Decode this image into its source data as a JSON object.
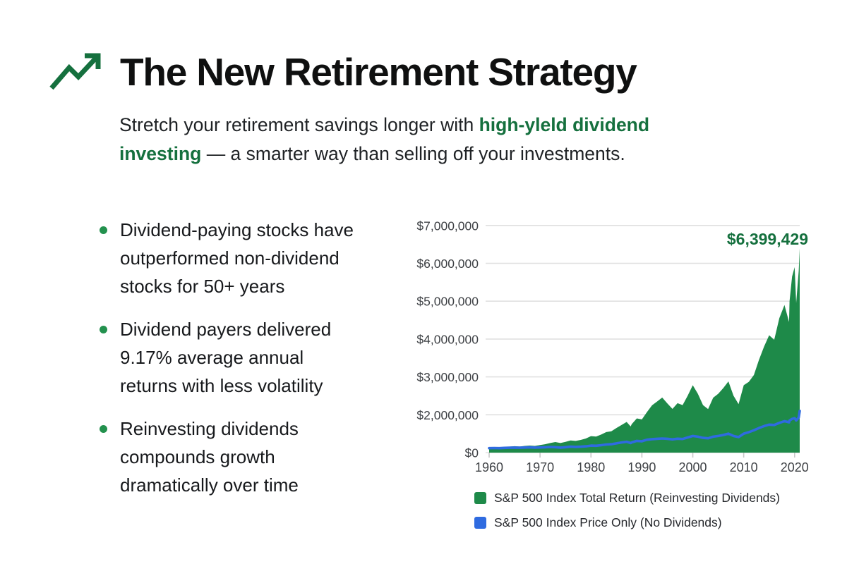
{
  "header": {
    "icon": "trend-up-arrow",
    "title": "The New Retirement Strategy",
    "subtitle": {
      "prefix": "Stretch your retirement savings longer with ",
      "highlight": "high-yleld dividend investing",
      "suffix": " — a smarter way than selling off your investments."
    }
  },
  "bullets": [
    "Dividend-paying stocks have outperformed non-dividend stocks for 50+ years",
    "Dividend payers delivered 9.17% average annual returns with less volatility",
    "Reinvesting dividends compounds growth dramatically over time"
  ],
  "colors": {
    "accent_text_green": "#15703E",
    "chart_area_green": "#1E8A49",
    "line_blue": "#2F6BE0",
    "bullet_dot_green": "#23914E",
    "text_dark": "#17191C",
    "grid_gray": "#E0E0E0",
    "axis_label_gray": "#3F4246"
  },
  "chart_data": {
    "type": "area",
    "title": "",
    "xlabel": "",
    "ylabel": "",
    "grid": true,
    "legend_position": "bottom",
    "x_range": [
      1960,
      2021
    ],
    "x_tick_labels": [
      "1960",
      "1970",
      "1980",
      "1990",
      "2000",
      "2010",
      "2020"
    ],
    "y_tick_labels": [
      "$7,000,000",
      "$6,000,000",
      "$5,000,000",
      "$4,000,000",
      "$3,000,000",
      "$2,000,000",
      "$0"
    ],
    "y_tick_values": [
      7000000,
      6000000,
      5000000,
      4000000,
      3000000,
      2000000,
      0
    ],
    "y_scale_note": "tick labels are evenly spaced; $1,000,000 is omitted so $0 sits one gridline step below $2,000,000",
    "annotation": {
      "text": "$6,399,429",
      "x": 2021,
      "value": 6399429
    },
    "x": [
      1960,
      1961,
      1962,
      1963,
      1964,
      1965,
      1966,
      1967,
      1968,
      1969,
      1970,
      1971,
      1972,
      1973,
      1974,
      1975,
      1976,
      1977,
      1978,
      1979,
      1980,
      1981,
      1982,
      1983,
      1984,
      1985,
      1986,
      1987,
      1987.8,
      1988,
      1989,
      1990,
      1991,
      1992,
      1993,
      1994,
      1995,
      1996,
      1997,
      1998,
      1999,
      2000,
      2001,
      2002,
      2003,
      2004,
      2005,
      2006,
      2007,
      2008,
      2009,
      2010,
      2011,
      2012,
      2013,
      2014,
      2015,
      2016,
      2017,
      2018,
      2018.9,
      2019,
      2019.5,
      2020,
      2020.3,
      2020.8,
      2021
    ],
    "series": [
      {
        "name": "S&P 500 Index Total Return (Reinvesting Dividends)",
        "style": "area",
        "color": "#1E8A49",
        "values": [
          260000,
          282000,
          268000,
          295000,
          318000,
          338000,
          320000,
          352000,
          372000,
          355000,
          400000,
          445000,
          505000,
          560000,
          505000,
          565000,
          645000,
          620000,
          672000,
          745000,
          870000,
          845000,
          955000,
          1085000,
          1125000,
          1300000,
          1455000,
          1620000,
          1380000,
          1505000,
          1805000,
          1755000,
          2070000,
          2250000,
          2350000,
          2455000,
          2300000,
          2155000,
          2305000,
          2255000,
          2505000,
          2780000,
          2555000,
          2255000,
          2150000,
          2450000,
          2555000,
          2705000,
          2880000,
          2505000,
          2280000,
          2780000,
          2870000,
          3050000,
          3450000,
          3800000,
          4100000,
          3980000,
          4550000,
          4900000,
          4450000,
          5000000,
          5650000,
          5900000,
          4950000,
          5800000,
          6399429
        ]
      },
      {
        "name": "S&P 500 Index Price Only (No Dividends)",
        "style": "line",
        "color": "#2F6BE0",
        "values": [
          235000,
          242000,
          236000,
          248000,
          256000,
          264000,
          256000,
          268000,
          274000,
          266000,
          272000,
          284000,
          298000,
          286000,
          266000,
          288000,
          312000,
          302000,
          312000,
          330000,
          368000,
          360000,
          390000,
          428000,
          442000,
          488000,
          536000,
          575000,
          505000,
          540000,
          620000,
          600000,
          680000,
          710000,
          730000,
          745000,
          730000,
          700000,
          735000,
          720000,
          800000,
          880000,
          840000,
          780000,
          755000,
          840000,
          880000,
          930000,
          1000000,
          880000,
          820000,
          1000000,
          1080000,
          1180000,
          1300000,
          1400000,
          1480000,
          1460000,
          1570000,
          1660000,
          1600000,
          1700000,
          1780000,
          1820000,
          1700000,
          1850000,
          2100000
        ]
      }
    ]
  }
}
